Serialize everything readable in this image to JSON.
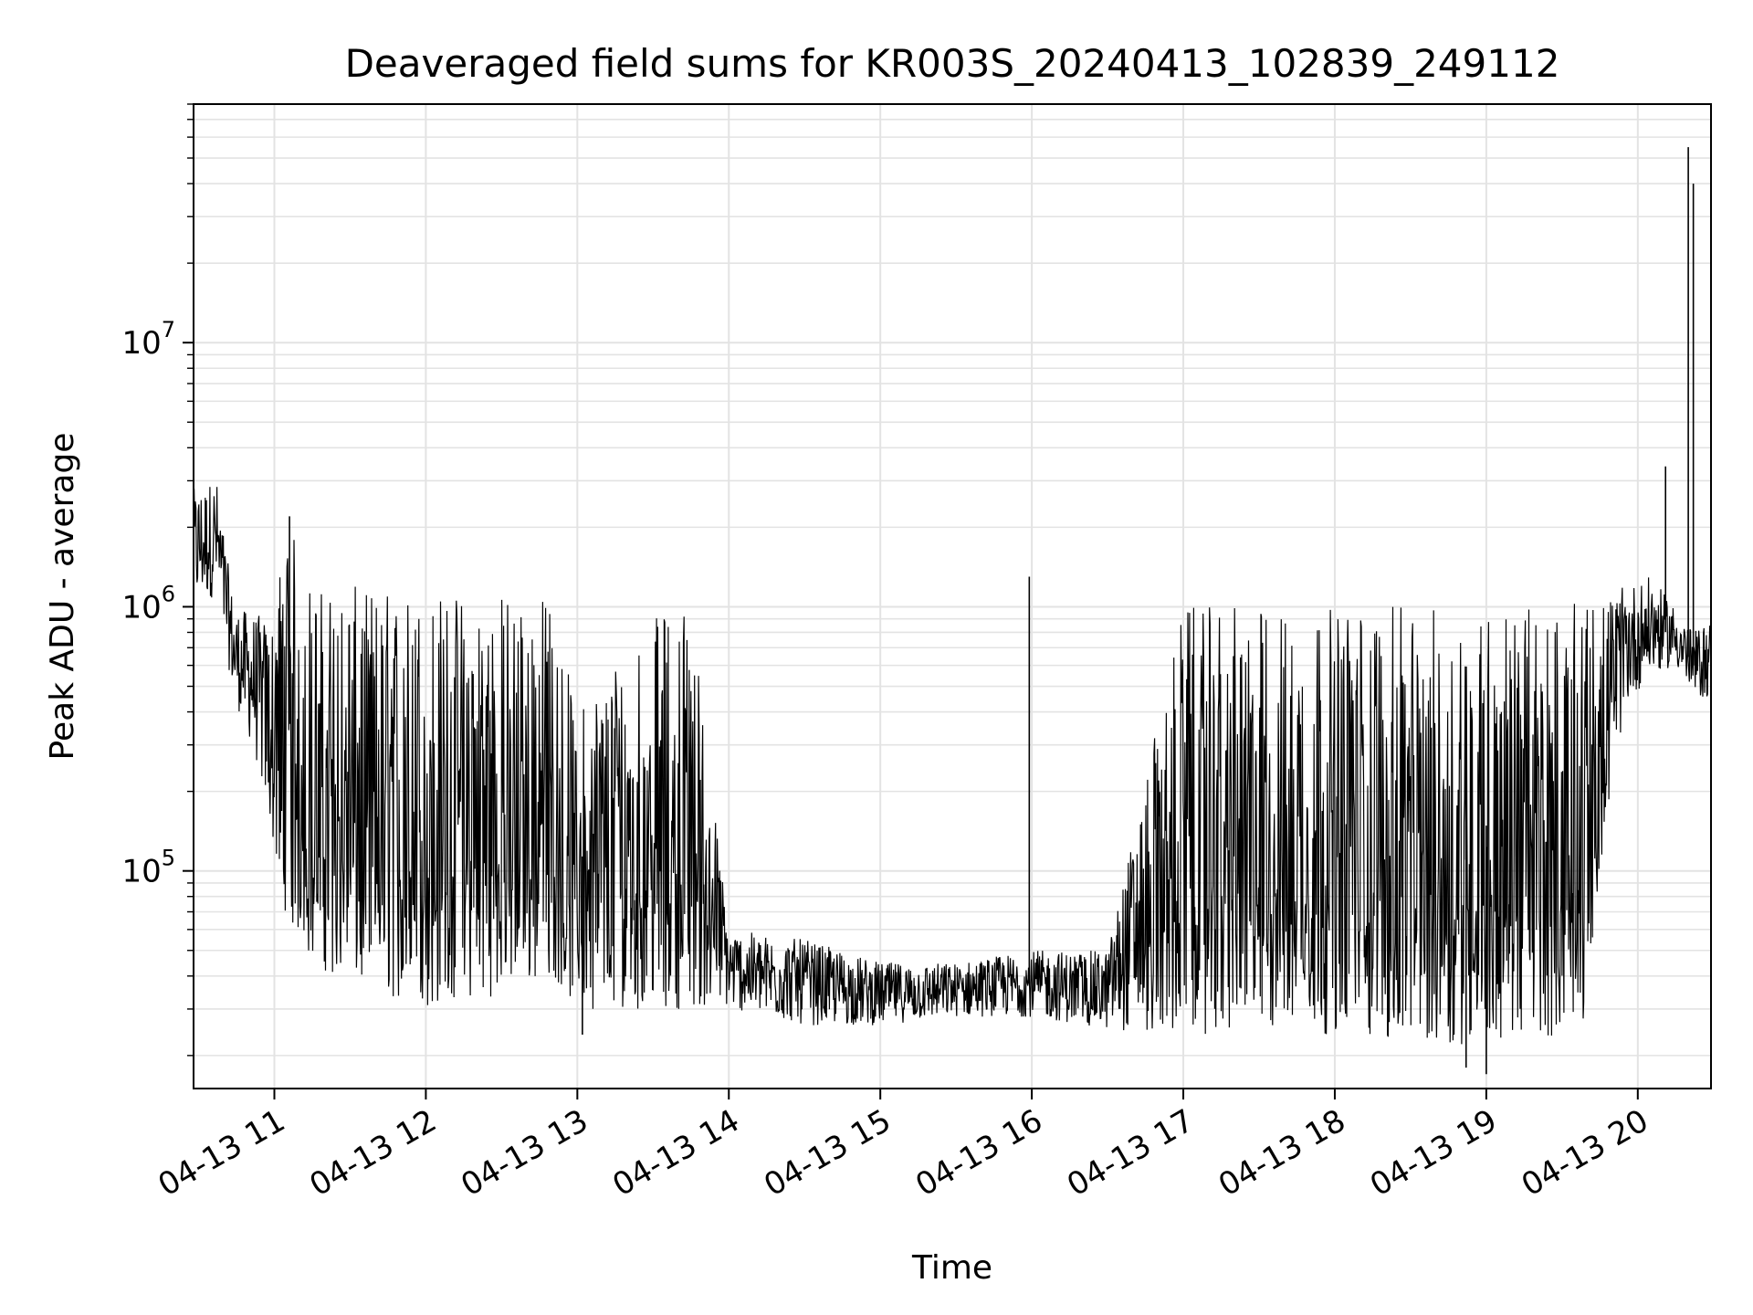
{
  "chart_data": {
    "type": "line",
    "title": "Deaveraged field sums for KR003S_20240413_102839_249112",
    "xlabel": "Time",
    "ylabel": "Peak ADU - average",
    "x_axis": {
      "kind": "datetime",
      "range": [
        "2024-04-13 10:28",
        "2024-04-13 20:29"
      ],
      "ticks": [
        {
          "value": "2024-04-13 11:00",
          "label": "04-13 11"
        },
        {
          "value": "2024-04-13 12:00",
          "label": "04-13 12"
        },
        {
          "value": "2024-04-13 13:00",
          "label": "04-13 13"
        },
        {
          "value": "2024-04-13 14:00",
          "label": "04-13 14"
        },
        {
          "value": "2024-04-13 15:00",
          "label": "04-13 15"
        },
        {
          "value": "2024-04-13 16:00",
          "label": "04-13 16"
        },
        {
          "value": "2024-04-13 17:00",
          "label": "04-13 17"
        },
        {
          "value": "2024-04-13 18:00",
          "label": "04-13 18"
        },
        {
          "value": "2024-04-13 19:00",
          "label": "04-13 19"
        },
        {
          "value": "2024-04-13 20:00",
          "label": "04-13 20"
        }
      ]
    },
    "y_axis": {
      "scale": "log",
      "range": [
        15000,
        80000000
      ],
      "ticks": [
        {
          "value": 100000,
          "base": "10",
          "exp": "5"
        },
        {
          "value": 1000000,
          "base": "10",
          "exp": "6"
        },
        {
          "value": 10000000,
          "base": "10",
          "exp": "7"
        }
      ]
    },
    "grid": true,
    "line_color": "#000000",
    "series": [
      {
        "envelope": [
          {
            "t": "2024-04-13 10:28",
            "low": 1000000,
            "high": 2800000
          },
          {
            "t": "2024-04-13 10:37",
            "low": 1100000,
            "high": 3100000
          },
          {
            "t": "2024-04-13 10:44",
            "low": 450000,
            "high": 1000000
          },
          {
            "t": "2024-04-13 10:52",
            "low": 280000,
            "high": 950000
          },
          {
            "t": "2024-04-13 10:59",
            "low": 130000,
            "high": 900000
          },
          {
            "t": "2024-04-13 11:05",
            "low": 65000,
            "high": 2200000
          },
          {
            "t": "2024-04-13 11:15",
            "low": 45000,
            "high": 1200000
          },
          {
            "t": "2024-04-13 11:30",
            "low": 36000,
            "high": 1200000
          },
          {
            "t": "2024-04-13 12:00",
            "low": 30000,
            "high": 1150000
          },
          {
            "t": "2024-04-13 12:30",
            "low": 34000,
            "high": 1150000
          },
          {
            "t": "2024-04-13 12:50",
            "low": 40000,
            "high": 1100000
          },
          {
            "t": "2024-04-13 13:00",
            "low": 30000,
            "high": 400000
          },
          {
            "t": "2024-04-13 13:20",
            "low": 30000,
            "high": 800000
          },
          {
            "t": "2024-04-13 13:45",
            "low": 30000,
            "high": 1100000
          },
          {
            "t": "2024-04-13 14:00",
            "low": 30000,
            "high": 60000
          },
          {
            "t": "2024-04-13 14:30",
            "low": 26000,
            "high": 55000
          },
          {
            "t": "2024-04-13 15:00",
            "low": 26000,
            "high": 45000
          },
          {
            "t": "2024-04-13 15:30",
            "low": 28000,
            "high": 45000
          },
          {
            "t": "2024-04-13 16:00",
            "low": 28000,
            "high": 50000
          },
          {
            "t": "2024-04-13 16:30",
            "low": 25000,
            "high": 50000
          },
          {
            "t": "2024-04-13 17:00",
            "low": 24000,
            "high": 1000000
          },
          {
            "t": "2024-04-13 17:30",
            "low": 24000,
            "high": 1000000
          },
          {
            "t": "2024-04-13 18:00",
            "low": 24000,
            "high": 1000000
          },
          {
            "t": "2024-04-13 18:30",
            "low": 22000,
            "high": 1000000
          },
          {
            "t": "2024-04-13 19:00",
            "low": 22000,
            "high": 1000000
          },
          {
            "t": "2024-04-13 19:30",
            "low": 24000,
            "high": 1000000
          },
          {
            "t": "2024-04-13 19:38",
            "low": 25000,
            "high": 1050000
          },
          {
            "t": "2024-04-13 19:45",
            "low": 100000,
            "high": 1050000
          },
          {
            "t": "2024-04-13 19:55",
            "low": 420000,
            "high": 1200000
          },
          {
            "t": "2024-04-13 20:05",
            "low": 550000,
            "high": 1300000
          },
          {
            "t": "2024-04-13 20:15",
            "low": 600000,
            "high": 1000000
          },
          {
            "t": "2024-04-13 20:22",
            "low": 450000,
            "high": 800000
          },
          {
            "t": "2024-04-13 20:29",
            "low": 450000,
            "high": 900000
          }
        ],
        "spikes": [
          {
            "t": "2024-04-13 11:06",
            "value": 2200000
          },
          {
            "t": "2024-04-13 13:02",
            "value": 24000
          },
          {
            "t": "2024-04-13 15:59",
            "value": 1300000
          },
          {
            "t": "2024-04-13 20:11",
            "value": 3400000
          },
          {
            "t": "2024-04-13 20:20",
            "value": 55000000
          },
          {
            "t": "2024-04-13 20:22",
            "value": 40000000
          },
          {
            "t": "2024-04-13 18:52",
            "value": 18000
          },
          {
            "t": "2024-04-13 19:00",
            "value": 17000
          }
        ]
      }
    ]
  }
}
